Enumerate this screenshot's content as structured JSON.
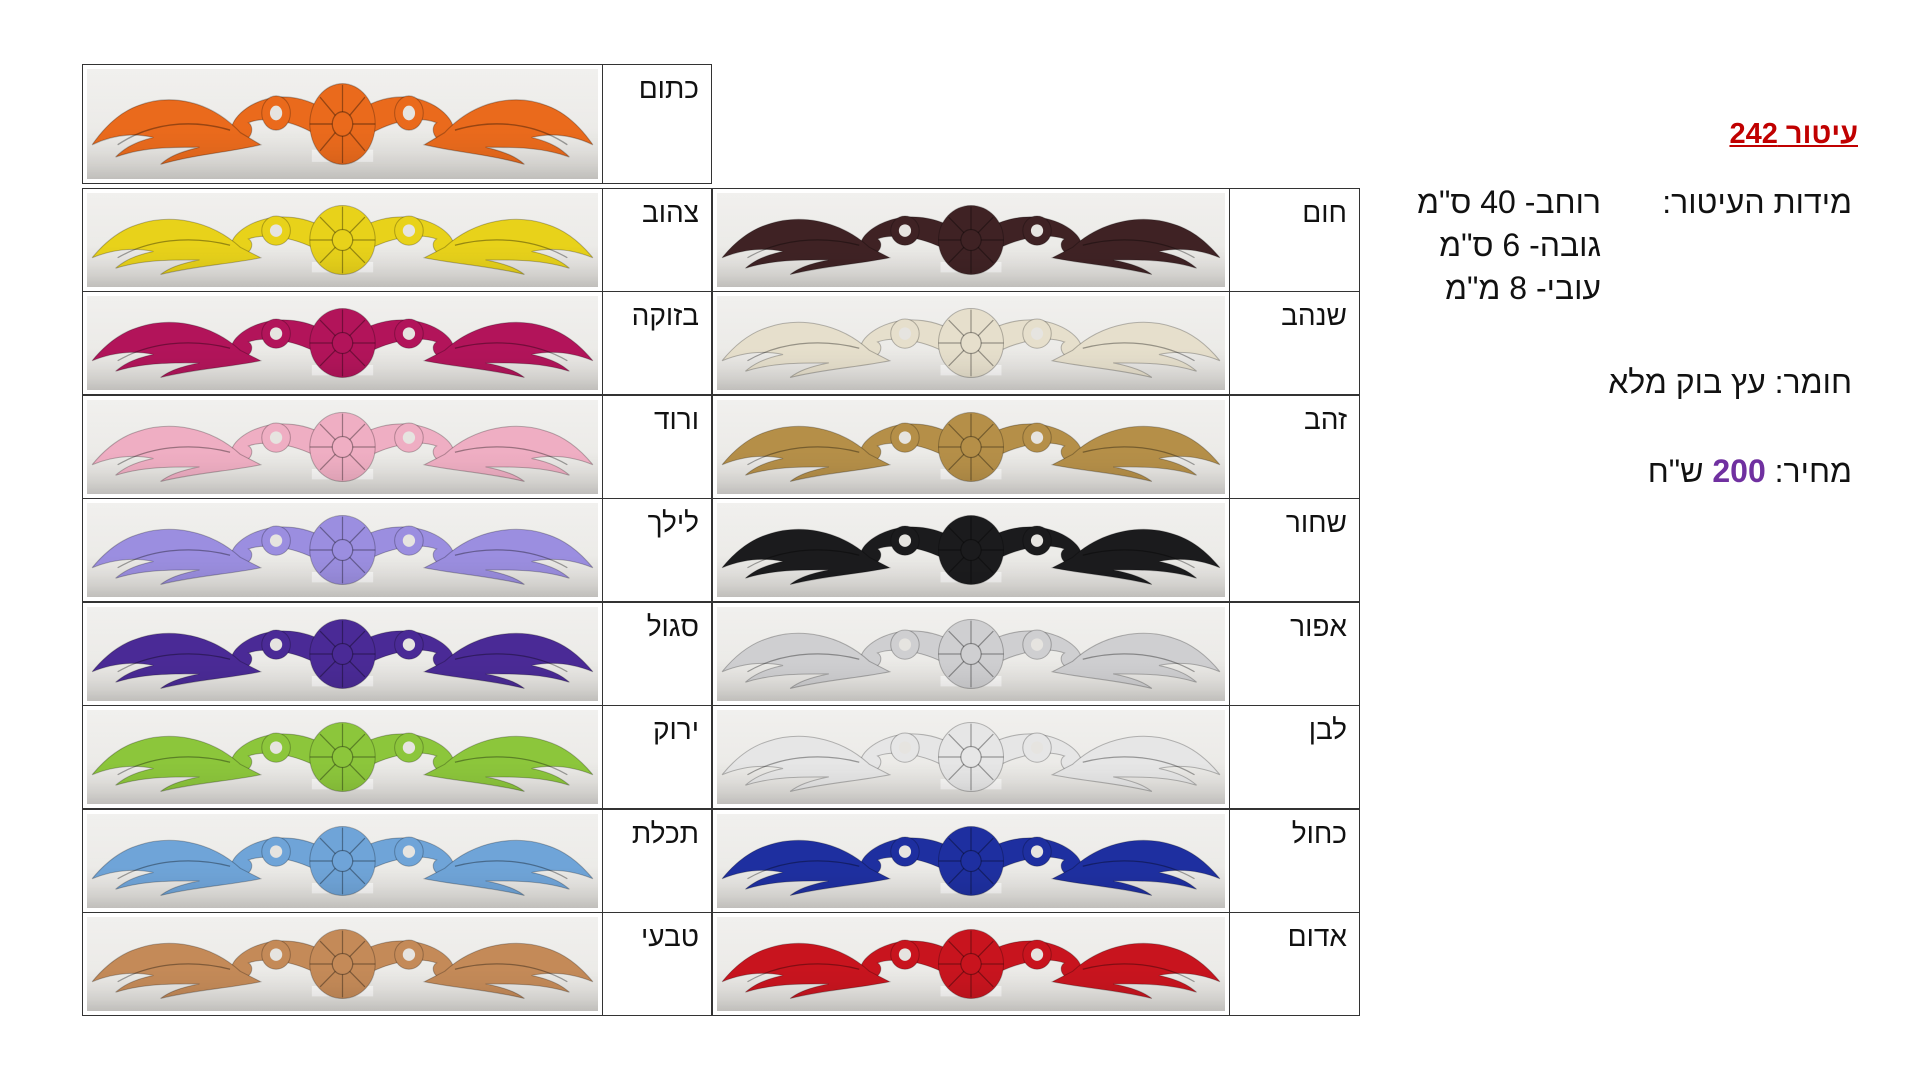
{
  "product": {
    "title": "עיטור 242",
    "dims_label": "מידות העיטור:",
    "dims": [
      "רוחב- 40 ס\"מ",
      "גובה- 6 ס\"מ",
      "עובי- 8 מ\"מ"
    ],
    "material_label": "חומר:",
    "material_value": "עץ בוק מלא",
    "price_label": "מחיר:",
    "price_value": "200",
    "price_unit": "ש\"ח"
  },
  "colors": [
    {
      "id": "orange",
      "name": "כתום",
      "hex": "#ea6a1c",
      "col": "left",
      "row": 0
    },
    {
      "id": "brown",
      "name": "חום",
      "hex": "#3f2224",
      "col": "right",
      "row": 1
    },
    {
      "id": "yellow",
      "name": "צהוב",
      "hex": "#e8d21a",
      "col": "left",
      "row": 1
    },
    {
      "id": "champagne",
      "name": "שנהב",
      "hex": "#e6dfcc",
      "col": "right",
      "row": 2
    },
    {
      "id": "bordeaux",
      "name": "בזוקה",
      "hex": "#b2145a",
      "col": "left",
      "row": 2
    },
    {
      "id": "gold",
      "name": "זהב",
      "hex": "#b58f48",
      "col": "right",
      "row": 3
    },
    {
      "id": "pink",
      "name": "ורוד",
      "hex": "#efaec3",
      "col": "left",
      "row": 3
    },
    {
      "id": "black",
      "name": "שחור",
      "hex": "#1b1b1d",
      "col": "right",
      "row": 4
    },
    {
      "id": "lilac",
      "name": "לילך",
      "hex": "#9b8ee0",
      "col": "left",
      "row": 4
    },
    {
      "id": "grey",
      "name": "אפור",
      "hex": "#cfcfd1",
      "col": "right",
      "row": 5
    },
    {
      "id": "purple",
      "name": "סגול",
      "hex": "#4a2a96",
      "col": "left",
      "row": 5
    },
    {
      "id": "white",
      "name": "לבן",
      "hex": "#e6e6e6",
      "col": "right",
      "row": 6
    },
    {
      "id": "green",
      "name": "ירוק",
      "hex": "#8cc63b",
      "col": "left",
      "row": 6
    },
    {
      "id": "navy",
      "name": "כחול",
      "hex": "#1e2fa0",
      "col": "right",
      "row": 7
    },
    {
      "id": "light-blue",
      "name": "תכלת",
      "hex": "#6fa4d8",
      "col": "left",
      "row": 7
    },
    {
      "id": "red",
      "name": "אדום",
      "hex": "#c8141e",
      "col": "right",
      "row": 8
    },
    {
      "id": "natural",
      "name": "טבעי",
      "hex": "#c48a58",
      "col": "left",
      "row": 8
    }
  ]
}
